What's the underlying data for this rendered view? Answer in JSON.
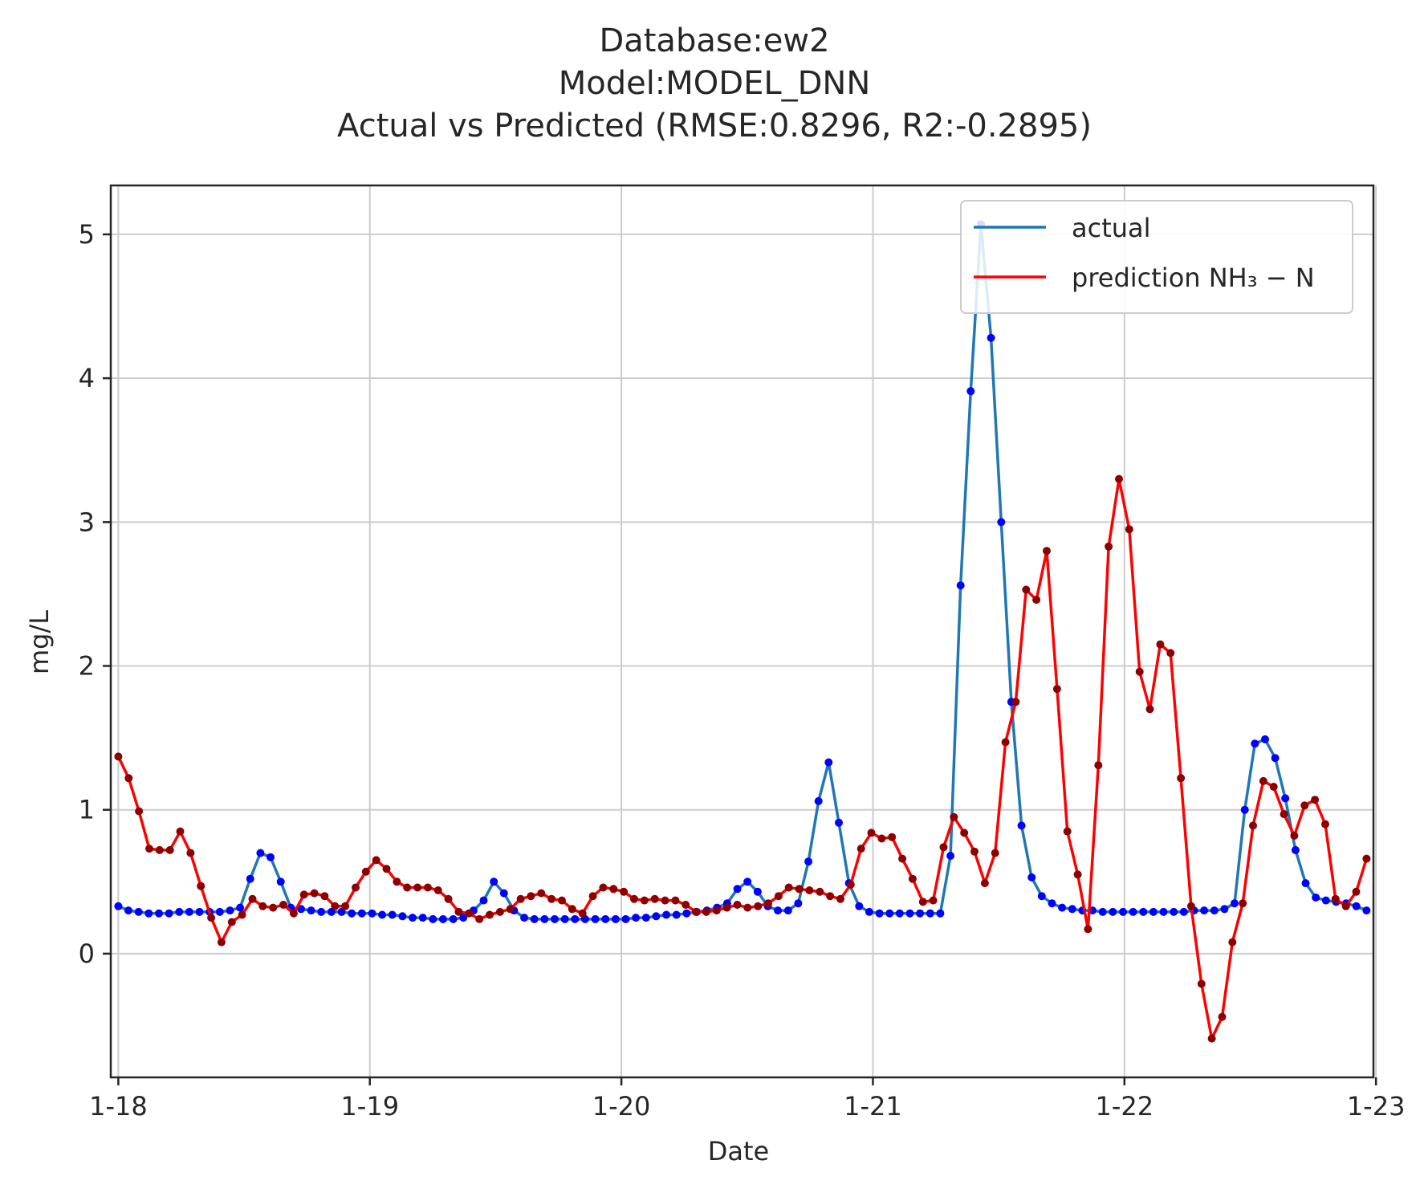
{
  "chart_data": {
    "type": "line",
    "title_lines": [
      "Database:ew2",
      "Model:MODEL_DNN",
      "Actual vs Predicted (RMSE:0.8296, R2:-0.2895)"
    ],
    "xlabel": "Date",
    "ylabel": "mg/L",
    "x_unit": "days from 1-18 00:00",
    "xlim": [
      -0.03,
      4.99
    ],
    "ylim": [
      -0.86,
      5.34
    ],
    "x_ticks": [
      0,
      1,
      2,
      3,
      4,
      5
    ],
    "x_tick_labels": [
      "1-18",
      "1-19",
      "1-20",
      "1-21",
      "1-22",
      "1-23"
    ],
    "y_ticks": [
      0,
      1,
      2,
      3,
      4,
      5
    ],
    "y_tick_labels": [
      "0",
      "1",
      "2",
      "3",
      "4",
      "5"
    ],
    "grid": true,
    "legend_position": "top-right",
    "series": [
      {
        "name": "actual",
        "line_color": "#1f77b4",
        "marker_color": "#0000ff",
        "values": [
          0.33,
          0.3,
          0.29,
          0.28,
          0.28,
          0.28,
          0.29,
          0.29,
          0.29,
          0.29,
          0.29,
          0.3,
          0.32,
          0.52,
          0.7,
          0.67,
          0.5,
          0.32,
          0.31,
          0.3,
          0.29,
          0.29,
          0.29,
          0.28,
          0.28,
          0.28,
          0.27,
          0.27,
          0.26,
          0.25,
          0.25,
          0.24,
          0.24,
          0.24,
          0.25,
          0.3,
          0.37,
          0.5,
          0.42,
          0.3,
          0.25,
          0.24,
          0.24,
          0.24,
          0.24,
          0.24,
          0.24,
          0.24,
          0.24,
          0.24,
          0.24,
          0.25,
          0.25,
          0.26,
          0.27,
          0.27,
          0.28,
          0.29,
          0.3,
          0.32,
          0.35,
          0.45,
          0.5,
          0.43,
          0.33,
          0.3,
          0.3,
          0.35,
          0.64,
          1.06,
          1.33,
          0.91,
          0.49,
          0.33,
          0.29,
          0.28,
          0.28,
          0.28,
          0.28,
          0.28,
          0.28,
          0.28,
          0.68,
          2.56,
          3.91,
          5.07,
          4.28,
          3.0,
          1.75,
          0.89,
          0.53,
          0.4,
          0.35,
          0.32,
          0.31,
          0.3,
          0.3,
          0.29,
          0.29,
          0.29,
          0.29,
          0.29,
          0.29,
          0.29,
          0.29,
          0.29,
          0.3,
          0.3,
          0.3,
          0.31,
          0.35,
          1.0,
          1.46,
          1.49,
          1.36,
          1.08,
          0.72,
          0.49,
          0.39,
          0.37,
          0.36,
          0.35,
          0.33,
          0.3
        ]
      },
      {
        "name": "prediction NH₃ − N",
        "line_color": "#ff0000",
        "marker_color": "#8b0000",
        "values": [
          1.37,
          1.22,
          0.99,
          0.73,
          0.72,
          0.72,
          0.85,
          0.7,
          0.47,
          0.25,
          0.08,
          0.22,
          0.27,
          0.38,
          0.33,
          0.32,
          0.34,
          0.28,
          0.41,
          0.42,
          0.4,
          0.33,
          0.33,
          0.46,
          0.57,
          0.65,
          0.59,
          0.5,
          0.46,
          0.46,
          0.46,
          0.44,
          0.38,
          0.29,
          0.28,
          0.24,
          0.27,
          0.29,
          0.31,
          0.38,
          0.4,
          0.42,
          0.38,
          0.37,
          0.31,
          0.28,
          0.4,
          0.46,
          0.45,
          0.43,
          0.38,
          0.37,
          0.38,
          0.37,
          0.37,
          0.34,
          0.29,
          0.29,
          0.3,
          0.32,
          0.34,
          0.32,
          0.33,
          0.35,
          0.4,
          0.46,
          0.45,
          0.44,
          0.43,
          0.4,
          0.38,
          0.48,
          0.73,
          0.84,
          0.8,
          0.81,
          0.66,
          0.52,
          0.36,
          0.37,
          0.74,
          0.95,
          0.84,
          0.71,
          0.49,
          0.7,
          1.47,
          1.75,
          2.53,
          2.46,
          2.8,
          1.84,
          0.85,
          0.55,
          0.17,
          1.31,
          2.83,
          3.3,
          2.95,
          1.96,
          1.7,
          2.15,
          2.09,
          1.22,
          0.33,
          -0.21,
          -0.59,
          -0.44,
          0.08,
          0.35,
          0.89,
          1.2,
          1.16,
          0.97,
          0.82,
          1.03,
          1.07,
          0.9,
          0.38,
          0.33,
          0.43,
          0.66
        ]
      }
    ]
  }
}
